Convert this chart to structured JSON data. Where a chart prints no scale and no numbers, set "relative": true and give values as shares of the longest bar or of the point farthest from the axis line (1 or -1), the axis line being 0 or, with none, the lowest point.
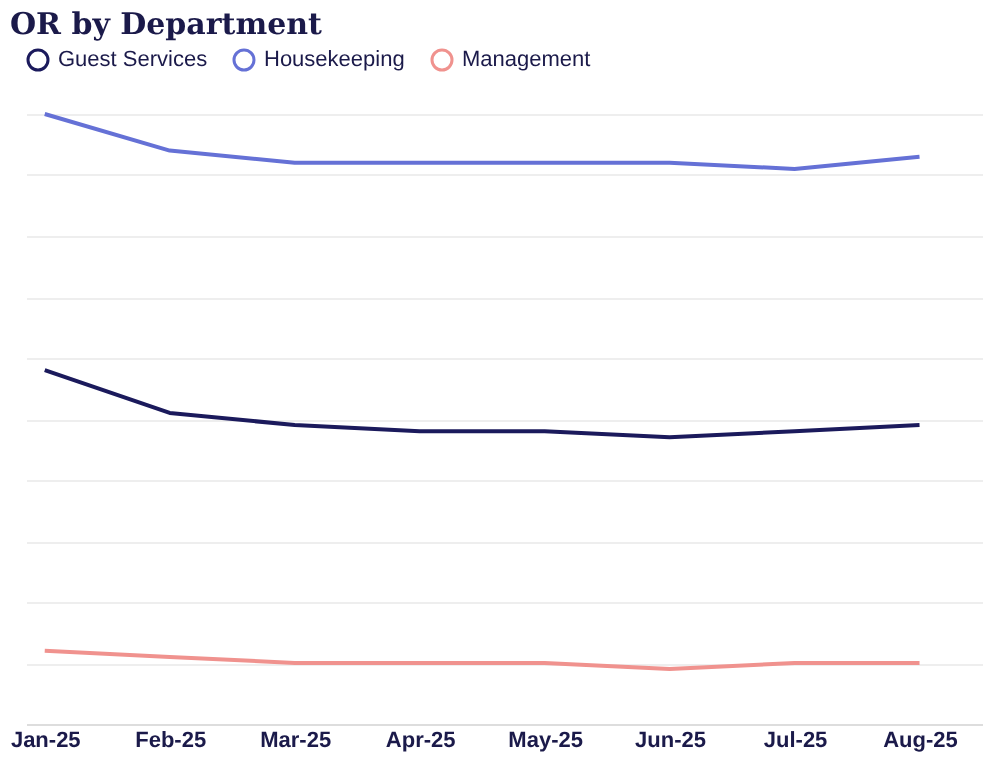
{
  "chart_data": {
    "type": "line",
    "title": "OR by Department",
    "relative": true,
    "grid": "y",
    "legend": "top",
    "marker": "none",
    "line_style": "solid",
    "categories": [
      "Jan-25",
      "Feb-25",
      "Mar-25",
      "Apr-25",
      "May-25",
      "Jun-25",
      "Jul-25",
      "Aug-25"
    ],
    "series": [
      {
        "name": "Guest Services",
        "color": "#1b1a5c",
        "values": [
          0.58,
          0.51,
          0.49,
          0.48,
          0.48,
          0.47,
          0.48,
          0.49
        ]
      },
      {
        "name": "Housekeeping",
        "color": "#6571d6",
        "values": [
          1.0,
          0.94,
          0.92,
          0.92,
          0.92,
          0.92,
          0.91,
          0.93
        ]
      },
      {
        "name": "Management",
        "color": "#f0928e",
        "values": [
          0.12,
          0.11,
          0.1,
          0.1,
          0.1,
          0.09,
          0.1,
          0.1
        ]
      }
    ]
  }
}
